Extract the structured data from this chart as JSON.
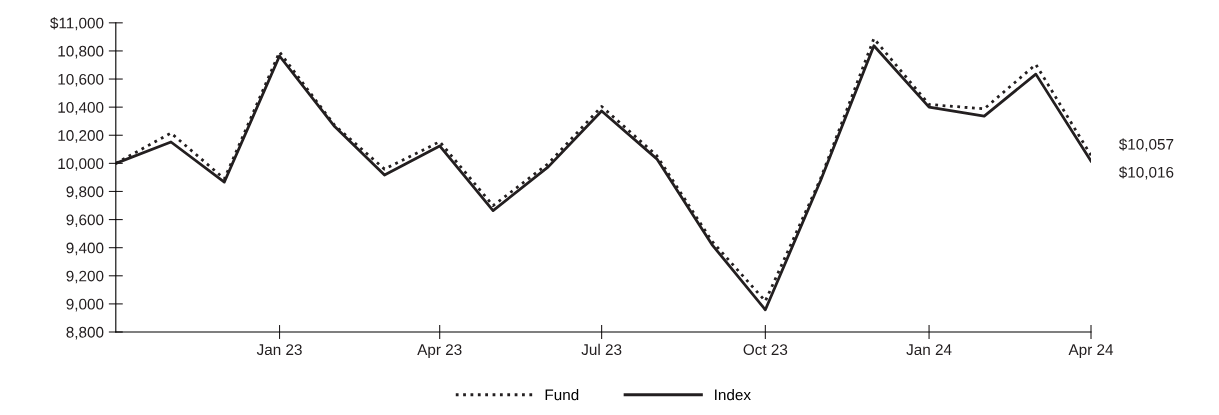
{
  "chart_data": {
    "type": "line",
    "x": [
      "2022-10",
      "2022-11",
      "2022-12",
      "2023-01",
      "2023-02",
      "2023-03",
      "2023-04",
      "2023-05",
      "2023-06",
      "2023-07",
      "2023-08",
      "2023-09",
      "2023-10",
      "2023-11",
      "2023-12",
      "2024-01",
      "2024-02",
      "2024-03",
      "2024-04"
    ],
    "series": [
      {
        "name": "Fund",
        "color": "#231f20",
        "line_style": "dotted",
        "values": [
          10000,
          10216,
          9890,
          10792,
          10270,
          9959,
          10154,
          9699,
          9998,
          10405,
          10055,
          9446,
          9020,
          9890,
          10888,
          10419,
          10388,
          10704,
          10057
        ]
      },
      {
        "name": "Index",
        "color": "#231f20",
        "line_style": "solid",
        "values": [
          10000,
          10152,
          9867,
          10764,
          10262,
          9917,
          10124,
          9664,
          9975,
          10373,
          10032,
          9422,
          8958,
          9876,
          10837,
          10400,
          10336,
          10635,
          10016
        ]
      }
    ],
    "annotations": [
      {
        "text": "$10,057",
        "x": "2024-04",
        "y": 10057
      },
      {
        "text": "$10,016",
        "x": "2024-04",
        "y": 10016
      }
    ],
    "xlim": [
      "2022-10",
      "2024-04"
    ],
    "xticks": [
      {
        "value": "2023-01",
        "label": "Jan 23"
      },
      {
        "value": "2023-04",
        "label": "Apr 23"
      },
      {
        "value": "2023-07",
        "label": "Jul 23"
      },
      {
        "value": "2023-10",
        "label": "Oct 23"
      },
      {
        "value": "2024-01",
        "label": "Jan 24"
      },
      {
        "value": "2024-04",
        "label": "Apr 24"
      }
    ],
    "ylim": [
      8800,
      11000
    ],
    "yticks": [
      {
        "value": 8800,
        "label": "8,800"
      },
      {
        "value": 9000,
        "label": "9,000"
      },
      {
        "value": 9200,
        "label": "9,200"
      },
      {
        "value": 9400,
        "label": "9,400"
      },
      {
        "value": 9600,
        "label": "9,600"
      },
      {
        "value": 9800,
        "label": "9,800"
      },
      {
        "value": 10000,
        "label": "10,000"
      },
      {
        "value": 10200,
        "label": "10,200"
      },
      {
        "value": 10400,
        "label": "10,400"
      },
      {
        "value": 10600,
        "label": "10,600"
      },
      {
        "value": 10800,
        "label": "10,800"
      },
      {
        "value": 11000,
        "label": "$11,000"
      }
    ],
    "grid": false,
    "legend": "bottom",
    "marker": "none"
  }
}
